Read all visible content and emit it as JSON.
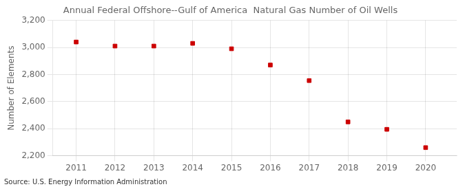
{
  "chart_data": {
    "type": "scatter",
    "title": "Annual Federal Offshore--Gulf of America  Natural Gas Number of Oil Wells",
    "ylabel": "Number of Elements",
    "annotations": [
      "Source: U.S. Energy Information Administration"
    ],
    "x": [
      2011,
      2012,
      2013,
      2014,
      2015,
      2016,
      2017,
      2018,
      2019,
      2020
    ],
    "values": [
      3040,
      3010,
      3010,
      3030,
      2990,
      2870,
      2755,
      2450,
      2395,
      2260
    ],
    "xlim": [
      2010.4,
      2020.8
    ],
    "xticks": [
      2011,
      2012,
      2013,
      2014,
      2015,
      2016,
      2017,
      2018,
      2019,
      2020
    ],
    "ylim": [
      2200,
      3200
    ],
    "yticks": [
      {
        "value": 2200,
        "label": "2,200"
      },
      {
        "value": 2400,
        "label": "2,400"
      },
      {
        "value": 2600,
        "label": "2,600"
      },
      {
        "value": 2800,
        "label": "2,800"
      },
      {
        "value": 3000,
        "label": "3,000"
      },
      {
        "value": 3200,
        "label": "3,200"
      }
    ],
    "color": "#cc0000",
    "marker": "square",
    "grid": true
  }
}
